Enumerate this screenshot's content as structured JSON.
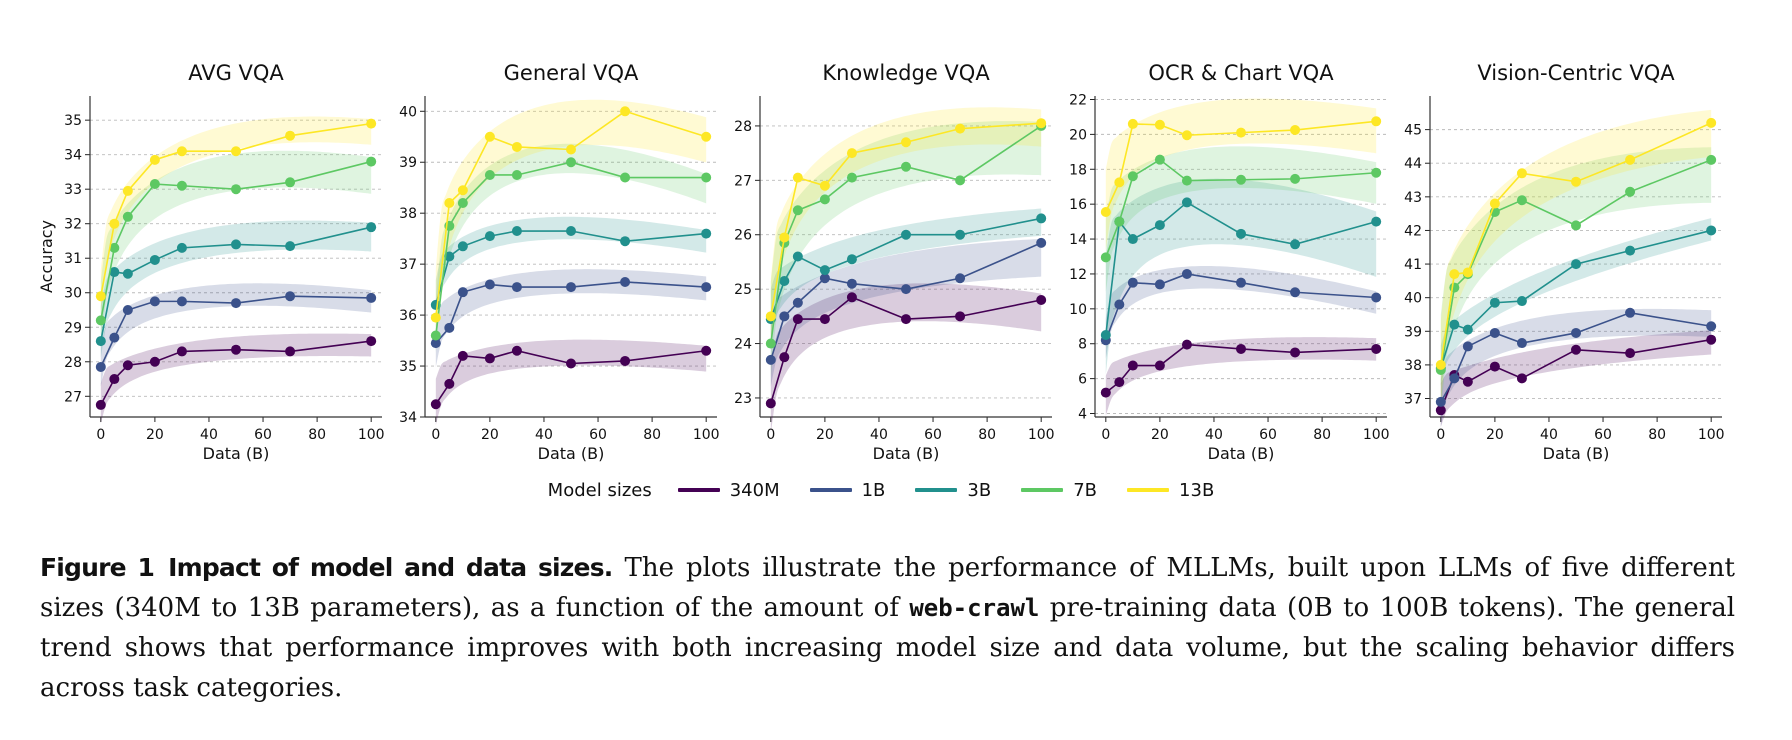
{
  "chart_data": [
    {
      "type": "line",
      "title": "AVG VQA",
      "xlabel": "Data (B)",
      "ylabel": "Accuracy",
      "x": [
        0,
        5,
        10,
        20,
        30,
        50,
        70,
        100
      ],
      "xticks": [
        0,
        20,
        40,
        60,
        80,
        100
      ],
      "xlim": [
        -4,
        104
      ],
      "yticks": [
        27,
        28,
        29,
        30,
        31,
        32,
        33,
        34,
        35
      ],
      "ylim": [
        26.4,
        35.7
      ],
      "grid": "horizontal-dashed",
      "series": [
        {
          "name": "340M",
          "values": [
            26.75,
            27.5,
            27.9,
            28.0,
            28.3,
            28.35,
            28.3,
            28.6
          ]
        },
        {
          "name": "1B",
          "values": [
            27.85,
            28.7,
            29.5,
            29.75,
            29.75,
            29.7,
            29.9,
            29.85
          ]
        },
        {
          "name": "3B",
          "values": [
            28.6,
            30.6,
            30.55,
            30.95,
            31.3,
            31.4,
            31.35,
            31.9
          ]
        },
        {
          "name": "7B",
          "values": [
            29.2,
            31.3,
            32.2,
            33.15,
            33.1,
            33.0,
            33.2,
            33.8
          ]
        },
        {
          "name": "13B",
          "values": [
            29.9,
            32.0,
            32.95,
            33.85,
            34.1,
            34.1,
            34.55,
            34.9
          ]
        }
      ]
    },
    {
      "type": "line",
      "title": "General VQA",
      "xlabel": "Data (B)",
      "ylabel": "",
      "x": [
        0,
        5,
        10,
        20,
        30,
        50,
        70,
        100
      ],
      "xticks": [
        0,
        20,
        40,
        60,
        80,
        100
      ],
      "xlim": [
        -4,
        104
      ],
      "yticks": [
        34,
        35,
        36,
        37,
        38,
        39,
        40
      ],
      "ylim": [
        34.0,
        40.3
      ],
      "grid": "horizontal-dashed",
      "series": [
        {
          "name": "340M",
          "values": [
            34.25,
            34.65,
            35.2,
            35.15,
            35.3,
            35.05,
            35.1,
            35.3
          ]
        },
        {
          "name": "1B",
          "values": [
            35.45,
            35.75,
            36.45,
            36.6,
            36.55,
            36.55,
            36.65,
            36.55
          ]
        },
        {
          "name": "3B",
          "values": [
            36.2,
            37.15,
            37.35,
            37.55,
            37.65,
            37.65,
            37.45,
            37.6
          ]
        },
        {
          "name": "7B",
          "values": [
            35.6,
            37.75,
            38.2,
            38.75,
            38.75,
            39.0,
            38.7,
            38.7
          ]
        },
        {
          "name": "13B",
          "values": [
            35.95,
            38.2,
            38.45,
            39.5,
            39.3,
            39.25,
            40.0,
            39.5
          ]
        }
      ]
    },
    {
      "type": "line",
      "title": "Knowledge VQA",
      "xlabel": "Data (B)",
      "ylabel": "",
      "x": [
        0,
        5,
        10,
        20,
        30,
        50,
        70,
        100
      ],
      "xticks": [
        0,
        20,
        40,
        60,
        80,
        100
      ],
      "xlim": [
        -4,
        104
      ],
      "yticks": [
        23,
        24,
        25,
        26,
        27,
        28
      ],
      "ylim": [
        22.65,
        28.55
      ],
      "grid": "horizontal-dashed",
      "series": [
        {
          "name": "340M",
          "values": [
            22.9,
            23.75,
            24.45,
            24.45,
            24.85,
            24.45,
            24.5,
            24.8
          ]
        },
        {
          "name": "1B",
          "values": [
            23.7,
            24.5,
            24.75,
            25.2,
            25.1,
            25.0,
            25.2,
            25.85
          ]
        },
        {
          "name": "3B",
          "values": [
            24.45,
            25.15,
            25.6,
            25.35,
            25.55,
            26.0,
            26.0,
            26.3
          ]
        },
        {
          "name": "7B",
          "values": [
            24.0,
            25.85,
            26.45,
            26.65,
            27.05,
            27.25,
            27.0,
            28.0
          ]
        },
        {
          "name": "13B",
          "values": [
            24.5,
            25.95,
            27.05,
            26.9,
            27.5,
            27.7,
            27.95,
            28.05
          ]
        }
      ]
    },
    {
      "type": "line",
      "title": "OCR & Chart VQA",
      "xlabel": "Data (B)",
      "ylabel": "",
      "x": [
        0,
        5,
        10,
        20,
        30,
        50,
        70,
        100
      ],
      "xticks": [
        0,
        20,
        40,
        60,
        80,
        100
      ],
      "xlim": [
        -4,
        104
      ],
      "yticks": [
        4,
        6,
        8,
        10,
        12,
        14,
        16,
        18,
        20,
        22
      ],
      "ylim": [
        3.8,
        22.2
      ],
      "grid": "horizontal-dashed",
      "series": [
        {
          "name": "340M",
          "values": [
            5.2,
            5.8,
            6.75,
            6.75,
            7.95,
            7.7,
            7.5,
            7.7
          ]
        },
        {
          "name": "1B",
          "values": [
            8.2,
            10.25,
            11.5,
            11.4,
            12.0,
            11.5,
            10.95,
            10.65
          ]
        },
        {
          "name": "3B",
          "values": [
            8.5,
            15.0,
            14.0,
            14.8,
            16.1,
            14.3,
            13.7,
            15.0
          ]
        },
        {
          "name": "7B",
          "values": [
            12.95,
            15.0,
            17.6,
            18.55,
            17.35,
            17.4,
            17.45,
            17.8
          ]
        },
        {
          "name": "13B",
          "values": [
            15.55,
            17.25,
            20.6,
            20.55,
            19.95,
            20.1,
            20.25,
            20.75
          ]
        }
      ]
    },
    {
      "type": "line",
      "title": "Vision-Centric VQA",
      "xlabel": "Data (B)",
      "ylabel": "",
      "x": [
        0,
        5,
        10,
        20,
        30,
        50,
        70,
        100
      ],
      "xticks": [
        0,
        20,
        40,
        60,
        80,
        100
      ],
      "xlim": [
        -4,
        104
      ],
      "yticks": [
        37,
        38,
        39,
        40,
        41,
        42,
        43,
        44,
        45
      ],
      "ylim": [
        36.45,
        46.0
      ],
      "grid": "horizontal-dashed",
      "series": [
        {
          "name": "340M",
          "values": [
            36.65,
            37.7,
            37.5,
            37.95,
            37.6,
            38.45,
            38.35,
            38.75
          ]
        },
        {
          "name": "1B",
          "values": [
            36.9,
            37.6,
            38.55,
            38.95,
            38.65,
            38.95,
            39.55,
            39.15
          ]
        },
        {
          "name": "3B",
          "values": [
            37.9,
            39.2,
            39.05,
            39.85,
            39.9,
            41.0,
            41.4,
            42.0
          ]
        },
        {
          "name": "7B",
          "values": [
            37.85,
            40.3,
            40.7,
            42.55,
            42.9,
            42.15,
            43.15,
            44.1
          ]
        },
        {
          "name": "13B",
          "values": [
            38.0,
            40.7,
            40.75,
            42.8,
            43.7,
            43.45,
            44.1,
            45.2
          ]
        }
      ]
    }
  ],
  "legend": {
    "title": "Model sizes",
    "placement": "bottom-center",
    "items": [
      {
        "label": "340M",
        "color": "#440154"
      },
      {
        "label": "1B",
        "color": "#3b528b"
      },
      {
        "label": "3B",
        "color": "#21908d"
      },
      {
        "label": "7B",
        "color": "#5dc863"
      },
      {
        "label": "13B",
        "color": "#fde725"
      }
    ]
  },
  "caption": {
    "figure_label": "Figure 1",
    "bold_title": "Impact of model and data sizes.",
    "text_before_code": "The plots illustrate the performance of MLLMs, built upon LLMs of five different sizes (340M to 13B parameters), as a function of the amount of",
    "code": "web-crawl",
    "text_after_code": "pre-training data (0B to 100B tokens). The general trend shows that performance improves with both increasing model size and data volume, but the scaling behavior differs across task categories."
  }
}
